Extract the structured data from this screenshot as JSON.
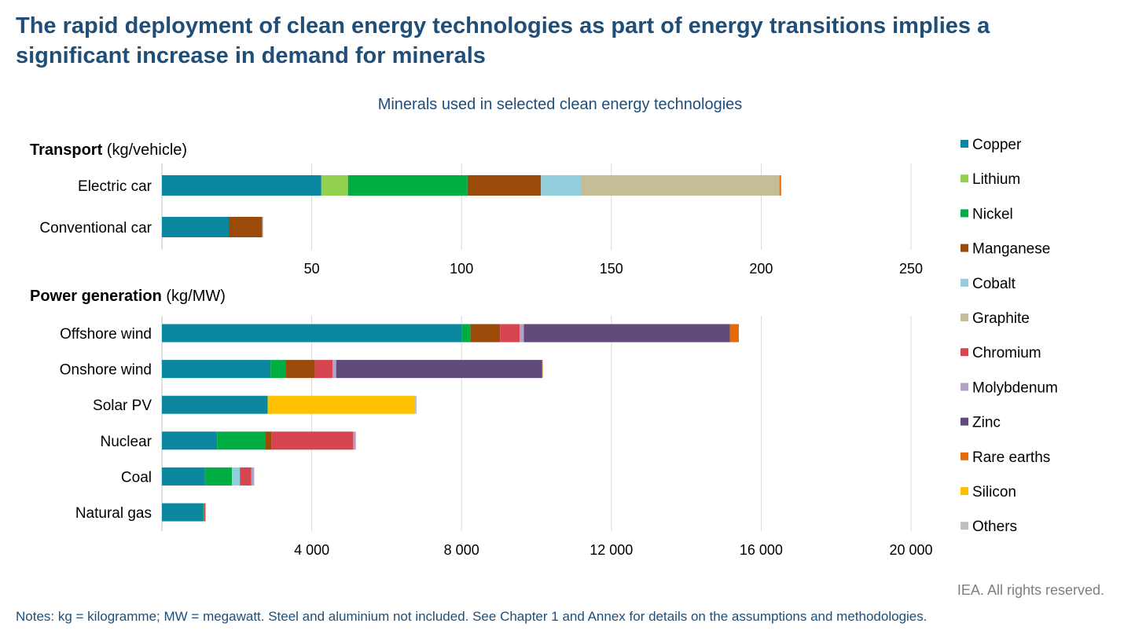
{
  "page": {
    "headline": "The rapid deployment of clean energy technologies as part of energy transitions implies a significant increase in demand for minerals",
    "subtitle": "Minerals used in selected clean energy technologies",
    "rights": "IEA. All rights reserved.",
    "notes": "Notes: kg = kilogramme; MW = megawatt. Steel and aluminium not included. See Chapter 1 and Annex for details on the assumptions and methodologies."
  },
  "chart_data": [
    {
      "type": "bar",
      "orientation": "horizontal",
      "stacked": true,
      "title_bold": "Transport",
      "title_unit": "(kg/vehicle)",
      "categories": [
        "Electric car",
        "Conventional car"
      ],
      "xlim": [
        0,
        250
      ],
      "xticks": [
        50,
        100,
        150,
        200,
        250
      ],
      "xtick_labels": [
        "50",
        "100",
        "150",
        "200",
        "250"
      ],
      "grid": true,
      "series": [
        {
          "name": "Copper",
          "color": "#0b879f",
          "values": [
            53.2,
            22.3
          ]
        },
        {
          "name": "Lithium",
          "color": "#92d050",
          "values": [
            8.9,
            0
          ]
        },
        {
          "name": "Nickel",
          "color": "#00ad43",
          "values": [
            39.9,
            0
          ]
        },
        {
          "name": "Manganese",
          "color": "#9b4a0a",
          "values": [
            24.5,
            11.2
          ]
        },
        {
          "name": "Cobalt",
          "color": "#92cddc",
          "values": [
            13.3,
            0
          ]
        },
        {
          "name": "Graphite",
          "color": "#c4bd97",
          "values": [
            66.3,
            0
          ]
        },
        {
          "name": "Chromium",
          "color": "#d64550",
          "values": [
            0,
            0
          ]
        },
        {
          "name": "Molybdenum",
          "color": "#b3a2c7",
          "values": [
            0,
            0
          ]
        },
        {
          "name": "Zinc",
          "color": "#604a7b",
          "values": [
            0,
            0
          ]
        },
        {
          "name": "Rare earths",
          "color": "#e36c09",
          "values": [
            0.5,
            0
          ]
        },
        {
          "name": "Silicon",
          "color": "#ffc000",
          "values": [
            0,
            0
          ]
        },
        {
          "name": "Others",
          "color": "#bfbfbf",
          "values": [
            0.1,
            0.3
          ]
        }
      ]
    },
    {
      "type": "bar",
      "orientation": "horizontal",
      "stacked": true,
      "title_bold": "Power generation",
      "title_unit": "(kg/MW)",
      "categories": [
        "Offshore wind",
        "Onshore wind",
        "Solar PV",
        "Nuclear",
        "Coal",
        "Natural gas"
      ],
      "xlim": [
        0,
        20000
      ],
      "xticks": [
        4000,
        8000,
        12000,
        16000,
        20000
      ],
      "xtick_labels": [
        "4 000",
        "8 000",
        "12 000",
        "16 000",
        "20 000"
      ],
      "grid": true,
      "series": [
        {
          "name": "Copper",
          "color": "#0b879f",
          "values": [
            8000,
            2900,
            2822,
            1473,
            1150,
            1100
          ]
        },
        {
          "name": "Lithium",
          "color": "#92d050",
          "values": [
            0,
            0,
            0,
            0,
            0,
            0
          ]
        },
        {
          "name": "Nickel",
          "color": "#00ad43",
          "values": [
            240,
            404,
            1,
            1297,
            721,
            16
          ]
        },
        {
          "name": "Manganese",
          "color": "#9b4a0a",
          "values": [
            790,
            780,
            0,
            148,
            0,
            0
          ]
        },
        {
          "name": "Cobalt",
          "color": "#92cddc",
          "values": [
            0,
            0,
            0,
            0,
            210,
            0
          ]
        },
        {
          "name": "Graphite",
          "color": "#c4bd97",
          "values": [
            0,
            0,
            0,
            0,
            0,
            0
          ]
        },
        {
          "name": "Chromium",
          "color": "#d64550",
          "values": [
            525,
            470,
            0,
            2190,
            308,
            48
          ]
        },
        {
          "name": "Molybdenum",
          "color": "#b3a2c7",
          "values": [
            109,
            99,
            0,
            70,
            66,
            0
          ]
        },
        {
          "name": "Zinc",
          "color": "#604a7b",
          "values": [
            5500,
            5500,
            0,
            0,
            0,
            0
          ]
        },
        {
          "name": "Rare earths",
          "color": "#e36c09",
          "values": [
            239,
            14,
            0,
            0,
            0,
            0
          ]
        },
        {
          "name": "Silicon",
          "color": "#ffc000",
          "values": [
            0,
            0,
            3937,
            0,
            0,
            0
          ]
        },
        {
          "name": "Others",
          "color": "#bfbfbf",
          "values": [
            0,
            0,
            40,
            0,
            5,
            0
          ]
        }
      ]
    }
  ]
}
